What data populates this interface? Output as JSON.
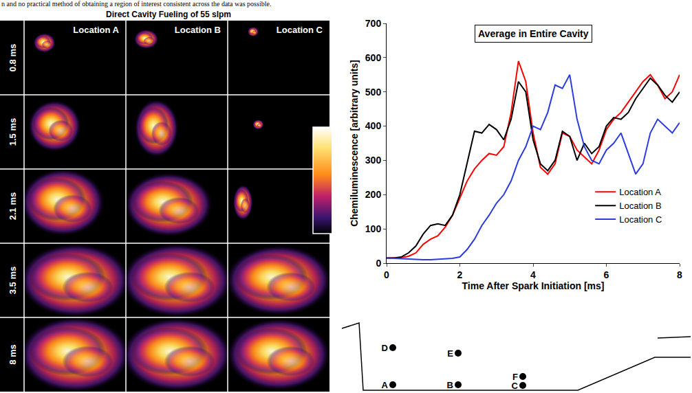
{
  "page_text": "n and no practical method of obtaining a region of interest consistent across the data was possible.",
  "image_panel": {
    "title": "Direct Cavity Fueling of 55 slpm",
    "columns": [
      "Location A",
      "Location B",
      "Location C"
    ],
    "rows": [
      "0.8 ms",
      "1.5 ms",
      "2.1 ms",
      "3.5 ms",
      "8 ms"
    ]
  },
  "chart_data": {
    "type": "line",
    "title": "Average in Entire Cavity",
    "x_label": "Time After Spark Initiation [ms]",
    "y_label": "Chemiluminescence [arbitrary units]",
    "x": [
      0,
      0.2,
      0.4,
      0.6,
      0.8,
      1.0,
      1.2,
      1.4,
      1.6,
      1.8,
      2.0,
      2.2,
      2.4,
      2.6,
      2.8,
      3.0,
      3.2,
      3.4,
      3.6,
      3.8,
      4.0,
      4.2,
      4.4,
      4.6,
      4.8,
      5.0,
      5.2,
      5.4,
      5.6,
      5.8,
      6.0,
      6.2,
      6.4,
      6.6,
      6.8,
      7.0,
      7.2,
      7.4,
      7.6,
      7.8,
      8.0
    ],
    "series": [
      {
        "name": "Location A",
        "color": "#ff0000",
        "line_style": "solid",
        "values": [
          15,
          15,
          16,
          20,
          30,
          55,
          70,
          80,
          105,
          140,
          190,
          240,
          275,
          300,
          320,
          315,
          340,
          440,
          590,
          530,
          380,
          280,
          260,
          290,
          380,
          370,
          330,
          310,
          290,
          330,
          390,
          420,
          440,
          470,
          500,
          530,
          550,
          520,
          480,
          500,
          550
        ]
      },
      {
        "name": "Location B",
        "color": "#000000",
        "line_style": "solid",
        "values": [
          15,
          15,
          18,
          30,
          50,
          85,
          110,
          115,
          110,
          140,
          200,
          290,
          385,
          380,
          405,
          390,
          360,
          420,
          530,
          500,
          360,
          290,
          270,
          300,
          385,
          370,
          300,
          350,
          320,
          340,
          400,
          425,
          420,
          440,
          480,
          510,
          540,
          520,
          490,
          470,
          500
        ]
      },
      {
        "name": "Location C",
        "color": "#2b3be0",
        "line_style": "solid",
        "values": [
          15,
          14,
          12,
          11,
          10,
          10,
          10,
          11,
          12,
          14,
          18,
          40,
          70,
          110,
          140,
          175,
          200,
          240,
          300,
          340,
          400,
          390,
          440,
          520,
          510,
          550,
          420,
          340,
          300,
          290,
          330,
          350,
          380,
          320,
          260,
          290,
          380,
          420,
          400,
          380,
          410
        ]
      }
    ],
    "xlim": [
      0,
      8
    ],
    "xticks": [
      0,
      2,
      4,
      6,
      8
    ],
    "ylim": [
      0,
      700
    ],
    "yticks": [
      0,
      100,
      200,
      300,
      400,
      500,
      600,
      700
    ],
    "grid": false,
    "legend": "right"
  },
  "diagram": {
    "points": [
      "D",
      "E",
      "F",
      "A",
      "B",
      "C"
    ]
  }
}
